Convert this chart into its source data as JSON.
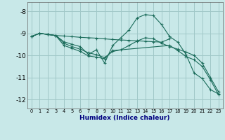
{
  "xlabel": "Humidex (Indice chaleur)",
  "bg_color": "#c8e8e8",
  "grid_color": "#a0c8c8",
  "line_color": "#1a6b5a",
  "xlim": [
    -0.5,
    23.5
  ],
  "ylim": [
    -12.4,
    -7.6
  ],
  "yticks": [
    -12,
    -11,
    -10,
    -9,
    -8
  ],
  "xticks": [
    0,
    1,
    2,
    3,
    4,
    5,
    6,
    7,
    8,
    9,
    10,
    11,
    12,
    13,
    14,
    15,
    16,
    17,
    18,
    19,
    20,
    21,
    22,
    23
  ],
  "series": [
    {
      "x": [
        0,
        1,
        2,
        3,
        4,
        5,
        6,
        7,
        8,
        9,
        10,
        11,
        12,
        13,
        14,
        15,
        16,
        17
      ],
      "y": [
        -9.15,
        -9.0,
        -9.05,
        -9.1,
        -9.12,
        -9.15,
        -9.18,
        -9.2,
        -9.22,
        -9.25,
        -9.28,
        -9.3,
        -9.32,
        -9.34,
        -9.36,
        -9.38,
        -9.4,
        -9.25
      ]
    },
    {
      "x": [
        0,
        1,
        2,
        3,
        4,
        5,
        6,
        7,
        8,
        9,
        10,
        11,
        12,
        13,
        14,
        15,
        16,
        17,
        18,
        19,
        20,
        21,
        22,
        23
      ],
      "y": [
        -9.15,
        -9.0,
        -9.05,
        -9.1,
        -9.38,
        -9.5,
        -9.6,
        -9.95,
        -9.75,
        -10.35,
        -9.55,
        -9.2,
        -8.85,
        -8.3,
        -8.15,
        -8.2,
        -8.6,
        -9.15,
        -9.4,
        -9.95,
        -10.8,
        -11.05,
        -11.55,
        -11.75
      ]
    },
    {
      "x": [
        0,
        1,
        2,
        3,
        4,
        5,
        6,
        7,
        8,
        9,
        10,
        11,
        12,
        13,
        14,
        15,
        16,
        17,
        18,
        19,
        20,
        21,
        22,
        23
      ],
      "y": [
        -9.15,
        -9.0,
        -9.05,
        -9.1,
        -9.45,
        -9.6,
        -9.72,
        -9.88,
        -9.97,
        -10.1,
        -9.82,
        -9.75,
        -9.55,
        -9.35,
        -9.2,
        -9.25,
        -9.45,
        -9.6,
        -9.72,
        -9.85,
        -10.0,
        -10.35,
        -11.0,
        -11.65
      ]
    },
    {
      "x": [
        0,
        1,
        2,
        3,
        4,
        5,
        6,
        7,
        8,
        9,
        10,
        17,
        18,
        19,
        20,
        21,
        22,
        23
      ],
      "y": [
        -9.15,
        -9.0,
        -9.05,
        -9.1,
        -9.55,
        -9.68,
        -9.82,
        -10.02,
        -10.08,
        -10.15,
        -9.78,
        -9.55,
        -9.78,
        -10.05,
        -10.2,
        -10.5,
        -11.1,
        -11.78
      ]
    }
  ]
}
